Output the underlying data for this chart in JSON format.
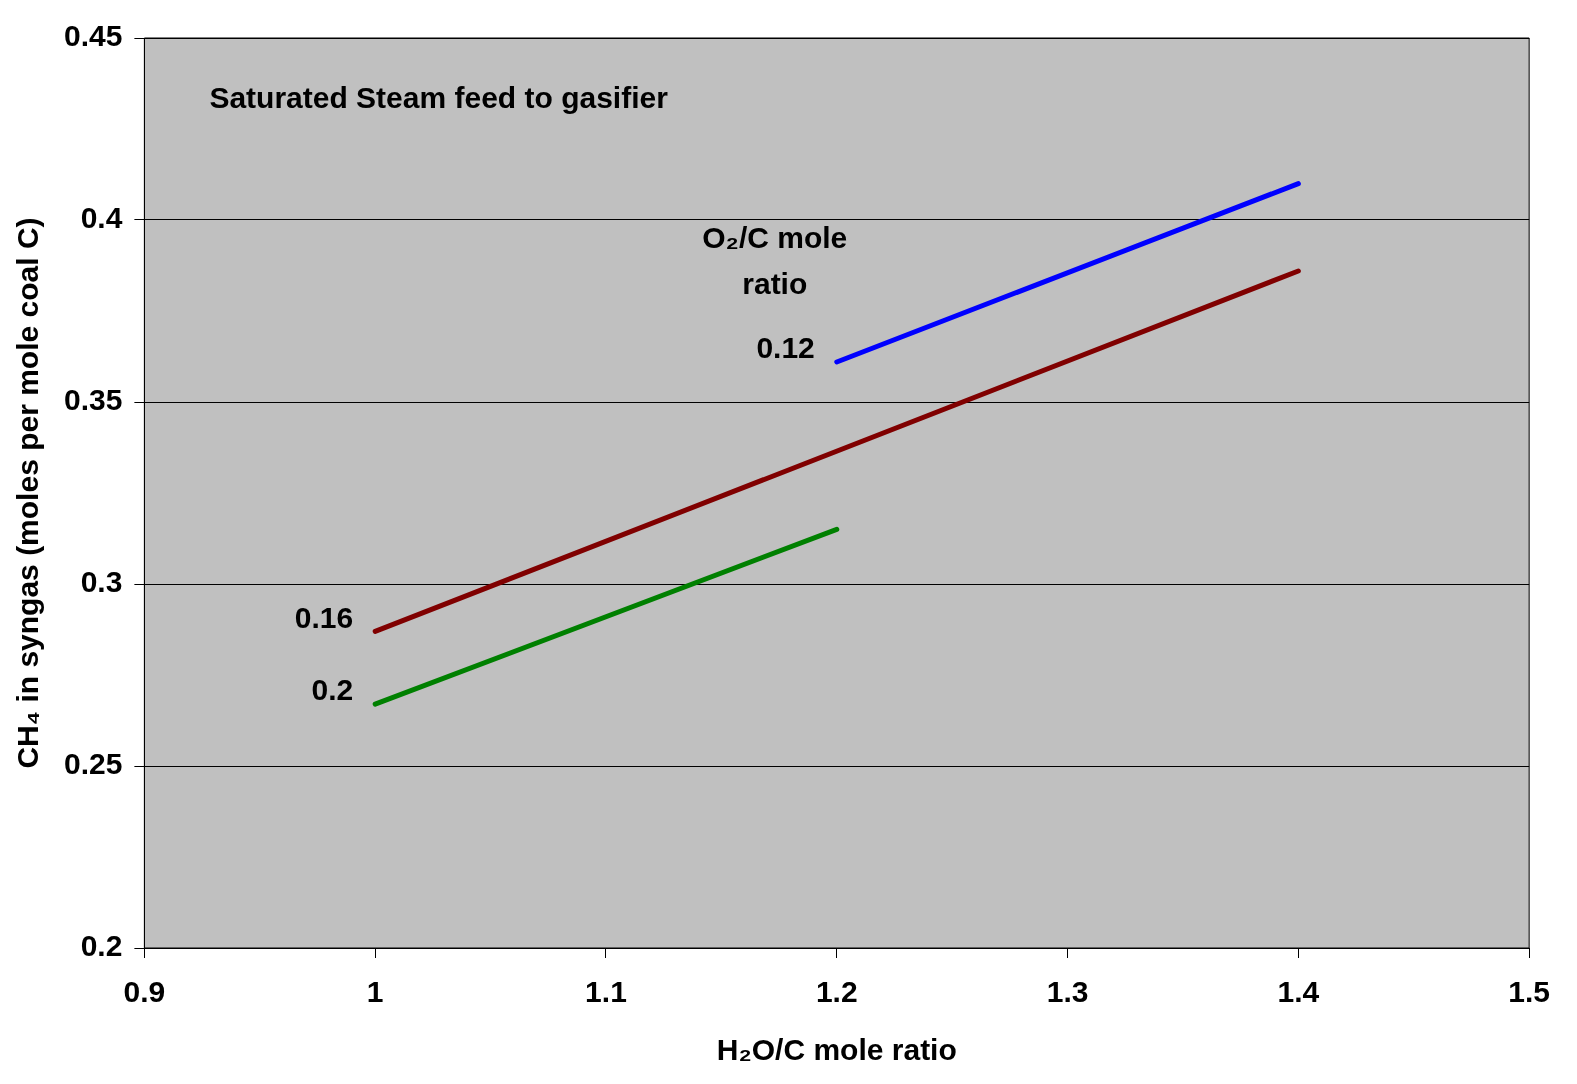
{
  "chart_data": {
    "type": "line",
    "xlabel": "H₂O/C mole ratio",
    "ylabel": "CH₄ in syngas (moles per mole coal C)",
    "legend_title": "O₂/C mole ratio",
    "annotations": [
      "Saturated Steam feed to gasifier"
    ],
    "xlim": [
      0.9,
      1.5
    ],
    "xticks": [
      0.9,
      1,
      1.1,
      1.2,
      1.3,
      1.4,
      1.5
    ],
    "ylim": [
      0.2,
      0.45
    ],
    "yticks": [
      0.2,
      0.25,
      0.3,
      0.35,
      0.4,
      0.45
    ],
    "grid": "y",
    "marker": "none",
    "line_style": "solid",
    "series": [
      {
        "name": "0.12",
        "color": "#0000ff",
        "x": [
          1.2,
          1.4
        ],
        "values": [
          0.361,
          0.41
        ]
      },
      {
        "name": "0.16",
        "color": "#800000",
        "x": [
          1.0,
          1.4
        ],
        "values": [
          0.287,
          0.386
        ]
      },
      {
        "name": "0.2",
        "color": "#008000",
        "x": [
          1.0,
          1.2
        ],
        "values": [
          0.267,
          0.315
        ]
      }
    ]
  }
}
